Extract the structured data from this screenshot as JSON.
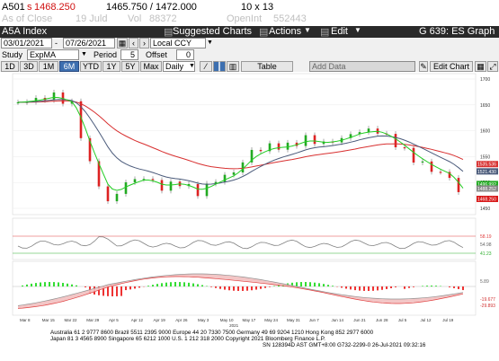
{
  "quote": {
    "ticker": "A501",
    "last_prefix": "s",
    "last": "1468.250",
    "range": "1465.750 / 1472.000",
    "size": "10 x 13",
    "asof_label": "As of Close",
    "asof_date": "19 Juld",
    "vol_label": "Vol",
    "vol": "88372",
    "oi_label": "OpenInt",
    "oi": "552443"
  },
  "titlebar": {
    "security": "A5A Index",
    "suggested": "Suggested Charts",
    "actions": "Actions",
    "edit": "Edit",
    "graph_label": "G 639: ES Graph"
  },
  "controls": {
    "start_date": "03/01/2021",
    "end_date": "07/26/2021",
    "currency": "Local CCY",
    "study_label": "Study",
    "study_value": "ExpMA",
    "period_label": "Period",
    "period_value": "5",
    "offset_label": "Offset",
    "offset_value": "0",
    "ranges": [
      "1D",
      "3D",
      "1M",
      "6M",
      "YTD",
      "1Y",
      "5Y",
      "Max"
    ],
    "active_range": "6M",
    "interval": "Daily",
    "table": "Table",
    "add_data": "Add Data",
    "edit_chart": "Edit Chart"
  },
  "colors": {
    "ema_fast": "#22cc22",
    "ema_slow": "#4a5a7a",
    "ema_long": "#d83030",
    "candle_up": "#22aa22",
    "candle_down": "#dd2222",
    "macd_pos": "#33dd33",
    "macd_neg": "#ee3333"
  },
  "chart_data": {
    "type": "candlestick",
    "xlabels": [
      "Mar 8",
      "Mar 15",
      "Mar 22",
      "Mar 29",
      "Apr 5",
      "Apr 12",
      "Apr 19",
      "Apr 26",
      "May 3",
      "May 10",
      "May 17",
      "May 24",
      "May 31",
      "Jun 7",
      "Jun 14",
      "Jun 21",
      "Jun 28",
      "Jul 5",
      "Jul 12",
      "Jul 19"
    ],
    "year_label": "2021",
    "yticks": [
      "1700",
      "1650",
      "1600",
      "1550",
      "1500",
      "1450"
    ],
    "price_tags": [
      "1535.536",
      "1521.430",
      "1496.992",
      "1488.252",
      "1468.250"
    ],
    "osc_ticks": [
      "58.19",
      "54.98",
      "41.23"
    ],
    "macd_ticks": [
      "5.89",
      "-19.677",
      "-29.893"
    ]
  },
  "footer": {
    "line1": "Australia 61 2 9777 8600 Brazil 5511 2395 9000 Europe 44 20 7330 7500 Germany 49 69 9204 1210 Hong Kong 852 2977 6000",
    "line2": "Japan 81 3 4565 8900        Singapore 65 6212 1000        U.S. 1 212 318 2000        Copyright 2021 Bloomberg Finance L.P.",
    "line3": "SN 128394D AST  GMT+8:00 G732-2299-0 26-Jul-2021 09:32:16"
  }
}
